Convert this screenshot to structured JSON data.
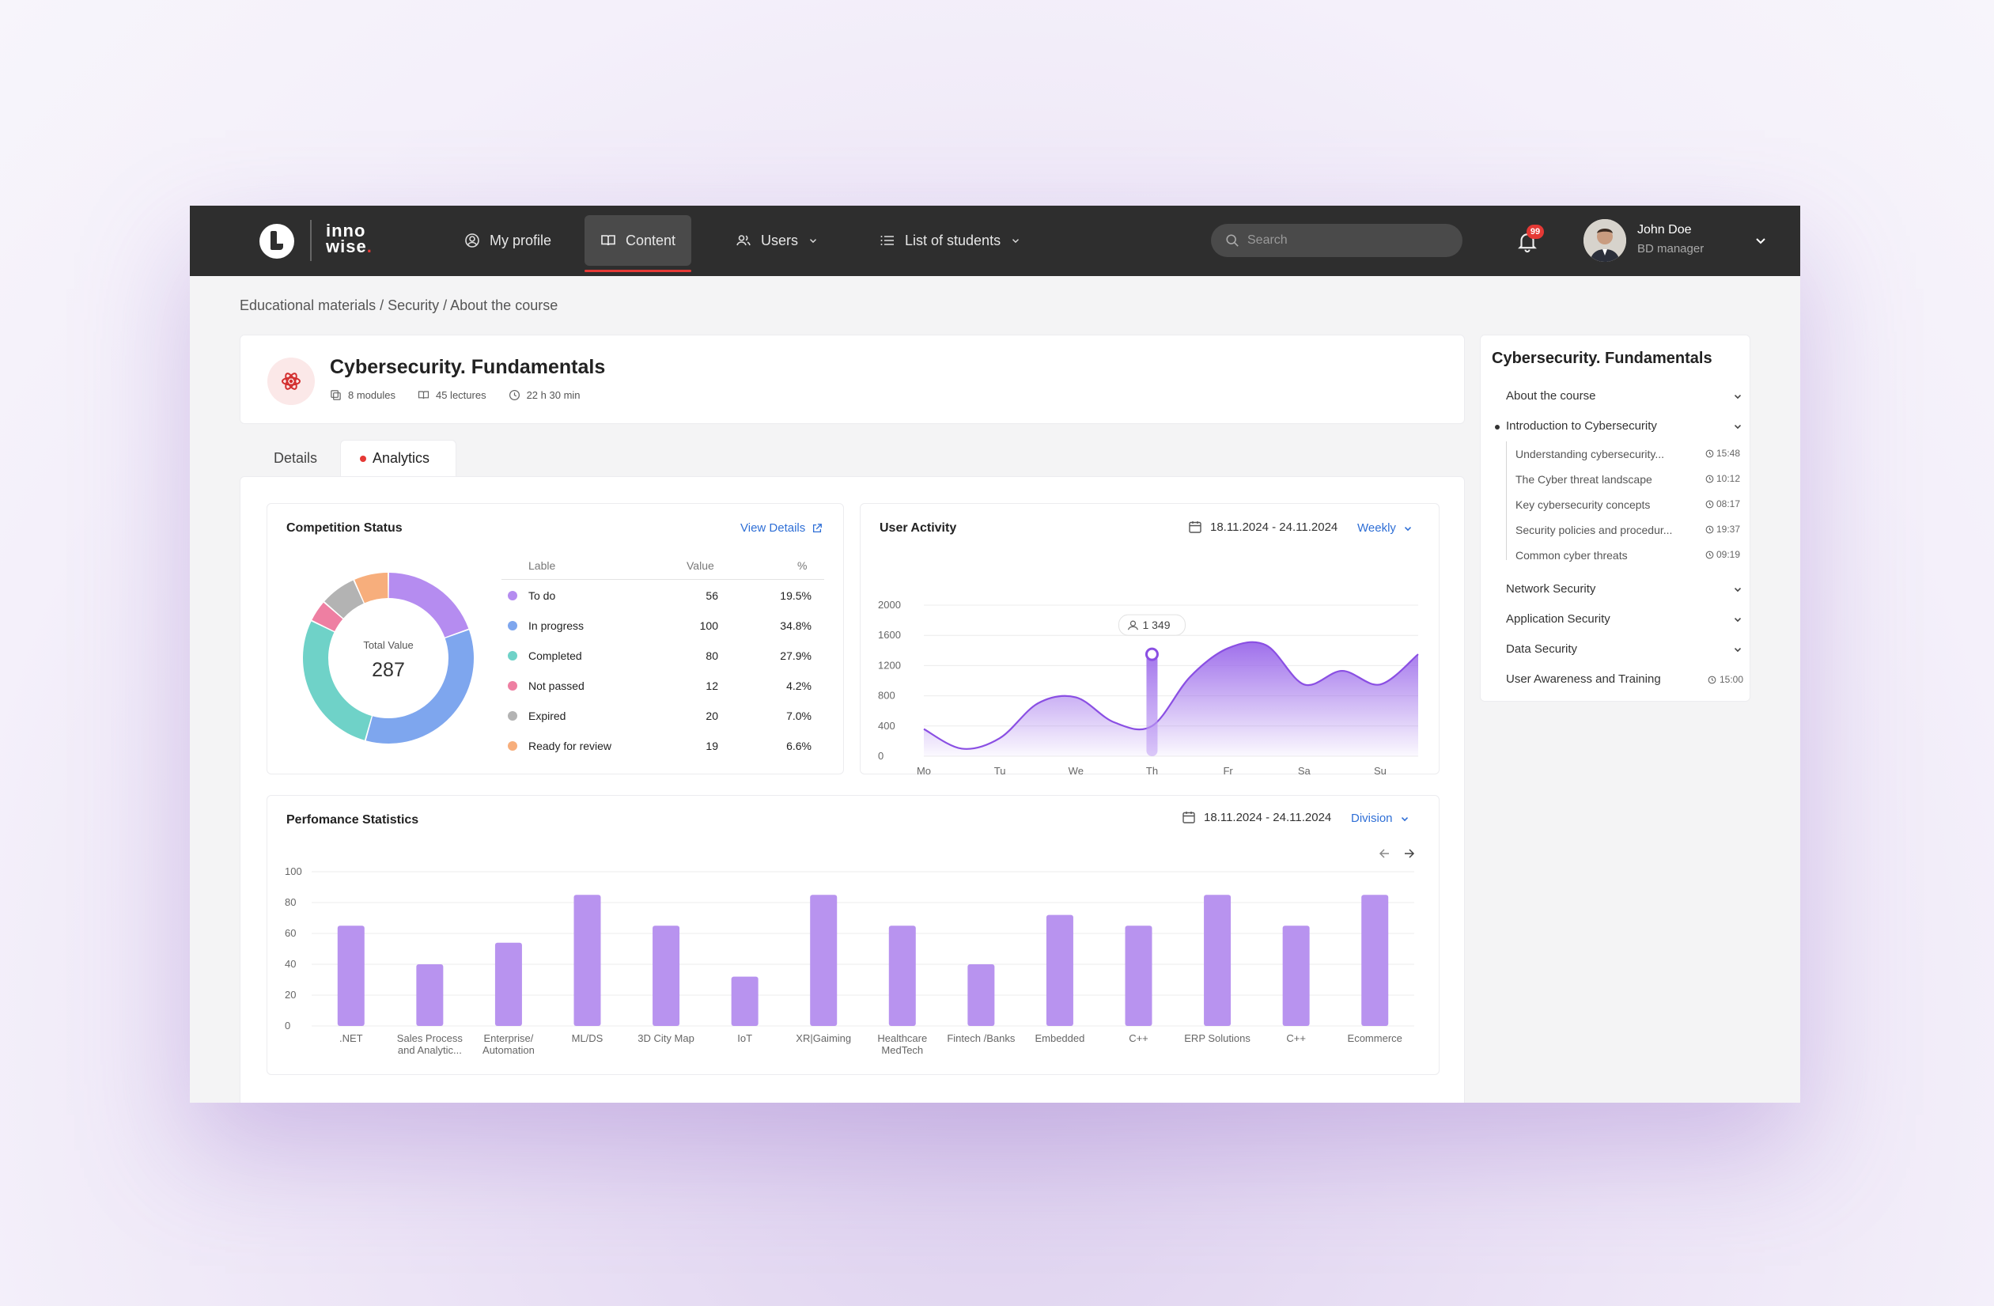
{
  "brand": {
    "line1": "inno",
    "line2": "wise"
  },
  "nav": {
    "my_profile": "My profile",
    "content": "Content",
    "users": "Users",
    "students": "List of students"
  },
  "search": {
    "placeholder": "Search"
  },
  "notifications": {
    "count": "99"
  },
  "user": {
    "name": "John Doe",
    "role": "BD manager"
  },
  "breadcrumb": "Educational materials / Security / About the course",
  "course": {
    "title": "Cybersecurity. Fundamentals",
    "modules": "8 modules",
    "lectures": "45 lectures",
    "duration": "22 h 30 min"
  },
  "tabs": {
    "details": "Details",
    "analytics": "Analytics"
  },
  "competition": {
    "title": "Competition Status",
    "view_details": "View Details",
    "total_label": "Total Value",
    "total_value": "287",
    "headers": {
      "label": "Lable",
      "value": "Value",
      "percent": "%"
    },
    "rows": [
      {
        "label": "To do",
        "value": "56",
        "percent": "19.5%",
        "color": "#b58cf0"
      },
      {
        "label": "In progress",
        "value": "100",
        "percent": "34.8%",
        "color": "#7ea6ee"
      },
      {
        "label": "Completed",
        "value": "80",
        "percent": "27.9%",
        "color": "#6fd2c8"
      },
      {
        "label": "Not passed",
        "value": "12",
        "percent": "4.2%",
        "color": "#ee7fa2"
      },
      {
        "label": "Expired",
        "value": "20",
        "percent": "7.0%",
        "color": "#b3b3b3"
      },
      {
        "label": "Ready for review",
        "value": "19",
        "percent": "6.6%",
        "color": "#f7ae7c"
      }
    ]
  },
  "activity": {
    "title": "User Activity",
    "date_range": "18.11.2024 - 24.11.2024",
    "period": "Weekly",
    "tooltip": "1 349"
  },
  "performance": {
    "title": "Perfomance Statistics",
    "date_range": "18.11.2024 - 24.11.2024",
    "group": "Division"
  },
  "chart_data": [
    {
      "type": "pie",
      "title": "Competition Status",
      "categories": [
        "To do",
        "In progress",
        "Completed",
        "Not passed",
        "Expired",
        "Ready for review"
      ],
      "values": [
        56,
        100,
        80,
        12,
        20,
        19
      ],
      "colors": [
        "#b58cf0",
        "#7ea6ee",
        "#6fd2c8",
        "#ee7fa2",
        "#b3b3b3",
        "#f7ae7c"
      ]
    },
    {
      "type": "area",
      "title": "User Activity",
      "categories": [
        "Mo",
        "Tu",
        "We",
        "Th",
        "Fr",
        "Sa",
        "Su"
      ],
      "x": [
        0,
        0.5,
        1,
        1.5,
        2,
        2.5,
        3,
        3.5,
        4,
        4.5,
        5,
        5.5,
        6,
        6.5
      ],
      "y": [
        360,
        100,
        240,
        700,
        780,
        450,
        400,
        1050,
        1430,
        1470,
        950,
        1130,
        950,
        1350
      ],
      "yticks": [
        0,
        400,
        800,
        1200,
        1600,
        2000
      ],
      "ylim": [
        0,
        2000
      ],
      "highlight": {
        "category": "Th",
        "value": 1349
      }
    },
    {
      "type": "bar",
      "title": "Perfomance Statistics",
      "categories": [
        ".NET",
        "Sales Process and Analytic...",
        "Enterprise/ Automation",
        "ML/DS",
        "3D City Map",
        "IoT",
        "XR|Gaiming",
        "Healthcare MedTech",
        "Fintech /Banks",
        "Embedded",
        "C++",
        "ERP Solutions",
        "C++",
        "Ecommerce"
      ],
      "values": [
        65,
        40,
        54,
        85,
        65,
        32,
        85,
        65,
        40,
        72,
        65,
        85,
        65,
        85
      ],
      "yticks": [
        0,
        20,
        40,
        60,
        80,
        100
      ],
      "ylim": [
        0,
        100
      ],
      "color": "#b893ef"
    }
  ],
  "sidebar": {
    "title": "Cybersecurity. Fundamentals",
    "sections": [
      {
        "label": "About the course"
      },
      {
        "label": "Introduction to Cybersecurity"
      },
      {
        "label": "Network Security"
      },
      {
        "label": "Application Security"
      },
      {
        "label": "Data Security"
      },
      {
        "label": "User Awareness and Training",
        "duration": "15:00"
      }
    ],
    "lessons": [
      {
        "label": "Understanding cybersecurity...",
        "duration": "15:48"
      },
      {
        "label": "The Cyber threat landscape",
        "duration": "10:12"
      },
      {
        "label": "Key cybersecurity concepts",
        "duration": "08:17"
      },
      {
        "label": "Security policies and procedur...",
        "duration": "19:37"
      },
      {
        "label": "Common cyber threats",
        "duration": "09:19"
      }
    ]
  }
}
